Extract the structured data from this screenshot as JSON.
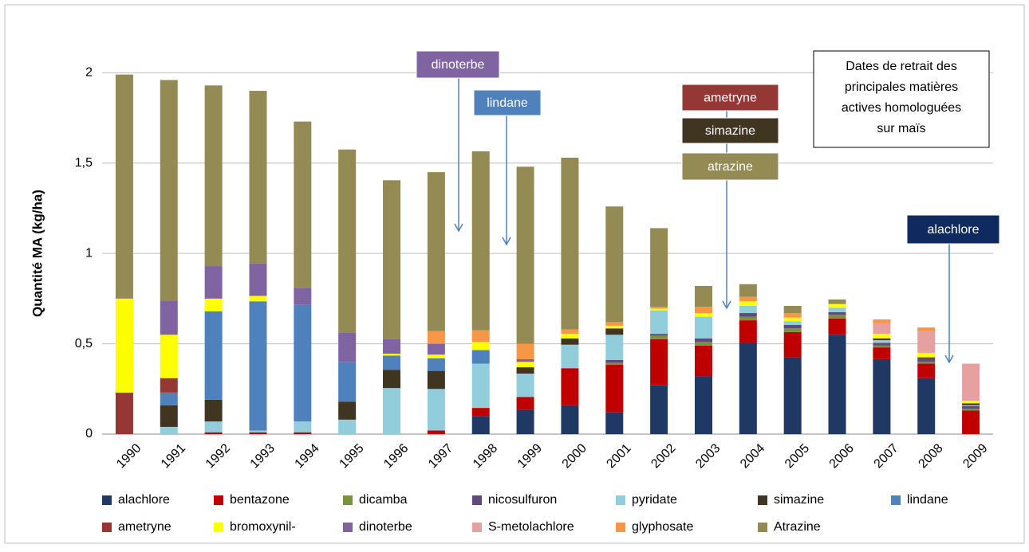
{
  "chart_data": {
    "type": "stacked_bar",
    "y_label": "Quantité MA (kg/ha)",
    "categories": [
      "1990",
      "1991",
      "1992",
      "1993",
      "1994",
      "1995",
      "1996",
      "1997",
      "1998",
      "1999",
      "2000",
      "2001",
      "2002",
      "2003",
      "2004",
      "2005",
      "2006",
      "2007",
      "2008",
      "2009"
    ],
    "ylim": [
      0,
      2.2
    ],
    "yticks": [
      0,
      {
        "value": 0.5,
        "label": "0,5"
      },
      1,
      {
        "value": 1.5,
        "label": "1,5"
      },
      2
    ],
    "grid": true,
    "series": [
      {
        "name": "alachlore",
        "color": "#1f3864",
        "values": [
          0,
          0,
          0,
          0,
          0,
          0,
          0,
          0,
          0.1,
          0.135,
          0.16,
          0.12,
          0.27,
          0.32,
          0.505,
          0.425,
          0.55,
          0.415,
          0.31,
          0
        ]
      },
      {
        "name": "bentazone",
        "color": "#c00000",
        "values": [
          0,
          0,
          0.01,
          0.01,
          0.01,
          0,
          0,
          0.02,
          0.045,
          0.07,
          0.205,
          0.265,
          0.255,
          0.17,
          0.125,
          0.14,
          0.09,
          0.065,
          0.08,
          0.13
        ]
      },
      {
        "name": "dicamba",
        "color": "#77933c",
        "values": [
          0,
          0,
          0,
          0,
          0,
          0,
          0,
          0,
          0,
          0,
          0,
          0.01,
          0.02,
          0.02,
          0.02,
          0.02,
          0.02,
          0.01,
          0.01,
          0.01
        ]
      },
      {
        "name": "nicosulfuron",
        "color": "#604a7b",
        "values": [
          0,
          0,
          0,
          0,
          0,
          0,
          0,
          0,
          0,
          0,
          0,
          0.015,
          0.01,
          0.02,
          0.02,
          0.02,
          0.015,
          0.015,
          0.02,
          0.015
        ]
      },
      {
        "name": "pyridate",
        "color": "#92cddc",
        "values": [
          0,
          0.04,
          0.06,
          0.01,
          0.06,
          0.08,
          0.255,
          0.23,
          0.245,
          0.13,
          0.13,
          0.14,
          0.13,
          0.12,
          0.04,
          0.02,
          0.025,
          0.015,
          0,
          0.005
        ]
      },
      {
        "name": "simazine",
        "color": "#403520",
        "values": [
          0,
          0.12,
          0.12,
          0,
          0,
          0.1,
          0.1,
          0.1,
          0,
          0.035,
          0.035,
          0.035,
          0,
          0,
          0,
          0,
          0,
          0.01,
          0.005,
          0.01
        ]
      },
      {
        "name": "lindane",
        "color": "#4f81bd",
        "values": [
          0,
          0.07,
          0.49,
          0.715,
          0.645,
          0.22,
          0.08,
          0.07,
          0.075,
          0,
          0,
          0,
          0,
          0,
          0,
          0,
          0,
          0,
          0,
          0
        ]
      },
      {
        "name": "ametryne",
        "color": "#953735",
        "values": [
          0.23,
          0.08,
          0,
          0,
          0,
          0,
          0,
          0,
          0,
          0,
          0,
          0,
          0,
          0,
          0,
          0,
          0,
          0,
          0,
          0
        ]
      },
      {
        "name": "bromoxynil-",
        "color": "#ffff00",
        "values": [
          0.52,
          0.24,
          0.07,
          0.03,
          0,
          0,
          0.01,
          0.02,
          0.045,
          0.03,
          0.025,
          0.015,
          0.01,
          0.02,
          0.025,
          0.02,
          0.02,
          0.025,
          0.025,
          0.015
        ]
      },
      {
        "name": "dinoterbe",
        "color": "#8064a2",
        "values": [
          0,
          0.19,
          0.18,
          0.18,
          0.095,
          0.16,
          0.08,
          0.06,
          0,
          0.015,
          0,
          0,
          0,
          0,
          0,
          0,
          0,
          0,
          0,
          0
        ]
      },
      {
        "name": "S-metolachlore",
        "color": "#e6a0a0",
        "values": [
          0,
          0,
          0,
          0,
          0,
          0,
          0,
          0,
          0,
          0,
          0,
          0,
          0,
          0,
          0,
          0,
          0,
          0.06,
          0.12,
          0.205
        ]
      },
      {
        "name": "glyphosate",
        "color": "#f79646",
        "values": [
          0,
          0,
          0,
          0,
          0,
          0,
          0,
          0.07,
          0.065,
          0.085,
          0.025,
          0.02,
          0.01,
          0.035,
          0.025,
          0.025,
          0,
          0.02,
          0.02,
          0
        ]
      },
      {
        "name": "Atrazine",
        "color": "#948a54",
        "values": [
          1.24,
          1.22,
          1.0,
          0.955,
          0.92,
          1.015,
          0.88,
          0.88,
          0.99,
          0.98,
          0.95,
          0.64,
          0.435,
          0.115,
          0.07,
          0.04,
          0.025,
          0,
          0,
          0
        ]
      }
    ],
    "annotations": [
      {
        "text": "dinoterbe",
        "color": "#8064a2"
      },
      {
        "text": "lindane",
        "color": "#4f81bd"
      },
      {
        "text": "ametryne",
        "color": "#953735"
      },
      {
        "text": "simazine",
        "color": "#403520"
      },
      {
        "text": "atrazine",
        "color": "#948a54"
      },
      {
        "text": "alachlore",
        "color": "#0f2a5e"
      }
    ],
    "note": [
      "Dates de retrait des",
      "principales matières",
      "actives  homologuées",
      "sur maïs"
    ]
  }
}
